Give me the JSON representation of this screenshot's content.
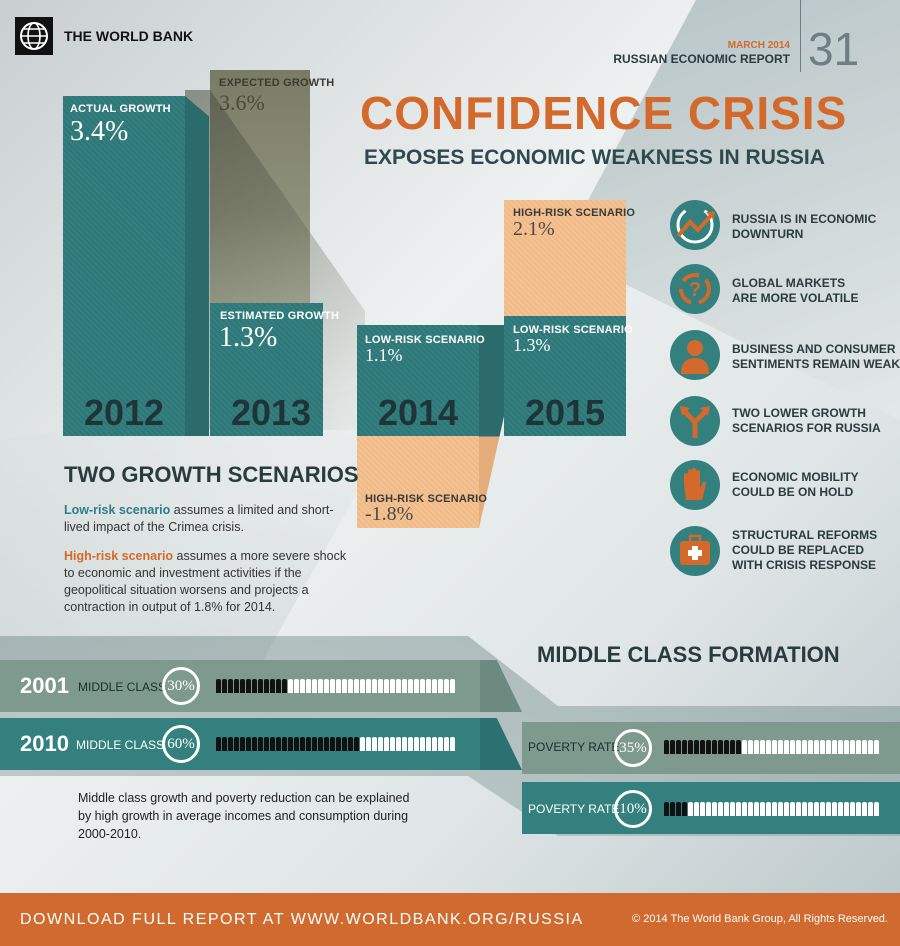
{
  "header": {
    "org_name": "THE WORLD BANK",
    "report_date": "MARCH 2014",
    "report_name": "RUSSIAN ECONOMIC REPORT",
    "report_number": "31"
  },
  "title": "CONFIDENCE CRISIS",
  "subtitle": "EXPOSES ECONOMIC WEAKNESS IN RUSSIA",
  "growth_bars": {
    "y2012": {
      "year": "2012",
      "label": "ACTUAL GROWTH",
      "value": "3.4%"
    },
    "y2013_expected": {
      "label": "EXPECTED GROWTH",
      "value": "3.6%"
    },
    "y2013": {
      "year": "2013",
      "label": "ESTIMATED GROWTH",
      "value": "1.3%"
    },
    "y2014_low": {
      "year": "2014",
      "label": "LOW-RISK SCENARIO",
      "value": "1.1%"
    },
    "y2014_high": {
      "label": "HIGH-RISK SCENARIO",
      "value": "-1.8%"
    },
    "y2015_low": {
      "year": "2015",
      "label": "LOW-RISK SCENARIO",
      "value": "1.3%"
    },
    "y2015_high": {
      "label": "HIGH-RISK SCENARIO",
      "value": "2.1%"
    }
  },
  "scenarios": {
    "heading": "TWO GROWTH SCENARIOS",
    "low_label": "Low-risk scenario",
    "low_text": " assumes a limited and short-lived impact of the Crimea crisis.",
    "high_label": "High-risk scenario",
    "high_text": " assumes a more severe shock to economic and investment activities if the geopolitical situation worsens and projects a contraction in output of 1.8% for 2014."
  },
  "points": [
    {
      "icon": "downturn-arrow-icon",
      "text_line1": "RUSSIA IS IN ECONOMIC",
      "text_line2": "DOWNTURN",
      "text_line3": ""
    },
    {
      "icon": "question-cycle-icon",
      "text_line1": "GLOBAL MARKETS",
      "text_line2": "ARE MORE VOLATILE",
      "text_line3": ""
    },
    {
      "icon": "person-icon",
      "text_line1": "BUSINESS AND CONSUMER",
      "text_line2": "SENTIMENTS REMAIN WEAK",
      "text_line3": ""
    },
    {
      "icon": "split-arrow-icon",
      "text_line1": "TWO LOWER GROWTH",
      "text_line2": "SCENARIOS FOR RUSSIA",
      "text_line3": ""
    },
    {
      "icon": "hand-stop-icon",
      "text_line1": "ECONOMIC MOBILITY",
      "text_line2": "COULD BE ON HOLD",
      "text_line3": ""
    },
    {
      "icon": "first-aid-kit-icon",
      "text_line1": "STRUCTURAL REFORMS",
      "text_line2": "COULD BE REPLACED",
      "text_line3": "WITH CRISIS RESPONSE"
    }
  ],
  "middle_class": {
    "heading": "MIDDLE CLASS FORMATION",
    "rows": [
      {
        "year": "2001",
        "label": "MIDDLE CLASS",
        "percent": "30%",
        "share": 0.3
      },
      {
        "year": "2010",
        "label": "MIDDLE CLASS",
        "percent": "60%",
        "share": 0.6
      }
    ],
    "poverty": [
      {
        "label": "POVERTY RATE",
        "percent": "35%",
        "share": 0.35
      },
      {
        "label": "POVERTY RATE",
        "percent": "10%",
        "share": 0.1
      }
    ],
    "note": "Middle class growth and poverty reduction can be explained by high growth in average incomes and consumption during 2000-2010."
  },
  "footer": {
    "download_text": "DOWNLOAD FULL REPORT AT WWW.WORLDBANK.ORG/RUSSIA",
    "copyright": "© 2014 The World Bank Group, All Rights Reserved."
  },
  "colors": {
    "teal": "#33807f",
    "orange": "#d36a2c",
    "peach": "#f4c394",
    "footer": "#d06a2f"
  }
}
